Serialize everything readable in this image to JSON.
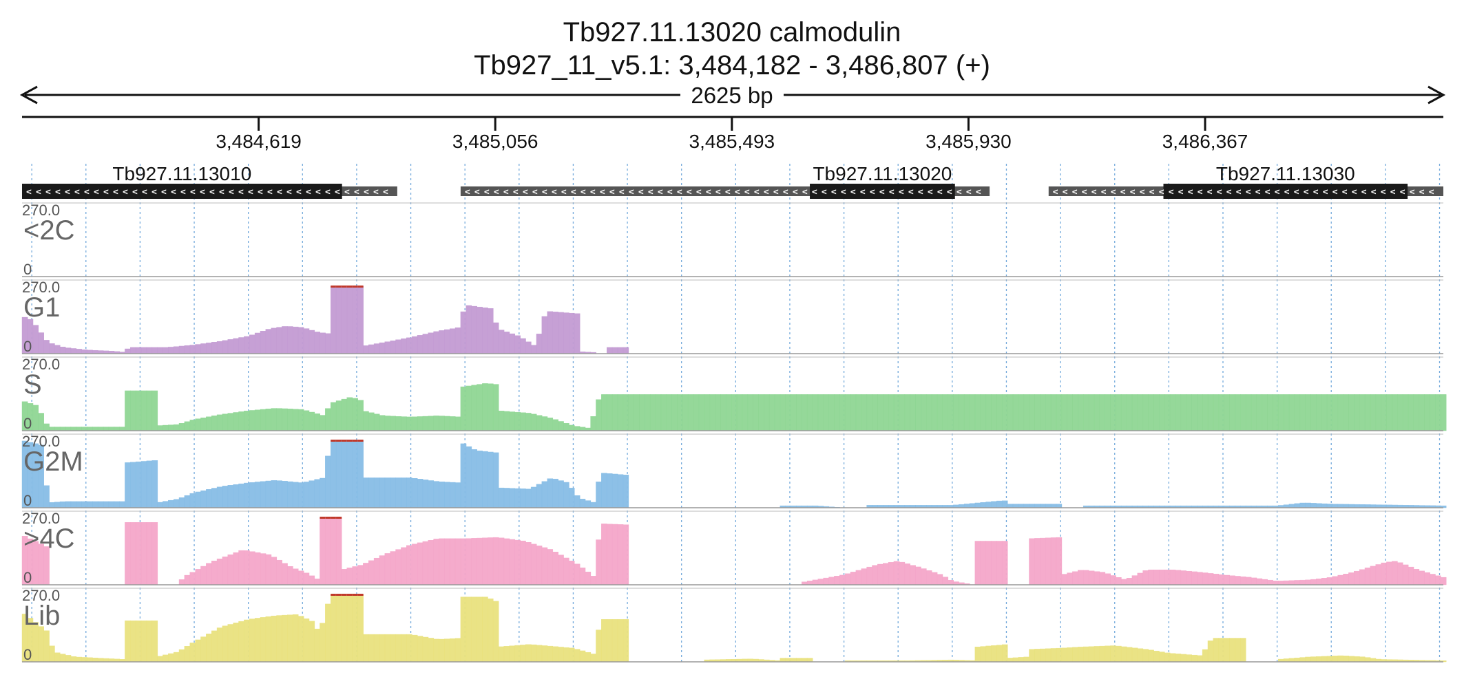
{
  "header": {
    "gene_line": "Tb927.11.13020  calmodulin",
    "locus_line": "Tb927_11_v5.1: 3,484,182 - 3,486,807 (+)",
    "span_label": "2625 bp"
  },
  "colors": {
    "grid": "#5b9bd5",
    "gene_block": "#1a1a1a",
    "gene_utr": "#555555",
    "clip": "#c0392b"
  },
  "chart_data": {
    "type": "bar",
    "region": {
      "chrom": "Tb927_11_v5.1",
      "start": 3484182,
      "end": 3486807,
      "strand": "+"
    },
    "x_ticks": [
      {
        "pos": 3484619,
        "label": "3,484,619"
      },
      {
        "pos": 3485056,
        "label": "3,485,056"
      },
      {
        "pos": 3485493,
        "label": "3,485,493"
      },
      {
        "pos": 3485930,
        "label": "3,485,930"
      },
      {
        "pos": 3486367,
        "label": "3,486,367"
      }
    ],
    "genes": [
      {
        "name": "Tb927.11.13010",
        "strand": "-",
        "start": 3484182,
        "end": 3484875,
        "cds_start": 3484182,
        "cds_end": 3484773
      },
      {
        "name": "Tb927.11.13020",
        "strand": "-",
        "start": 3484992,
        "end": 3485969,
        "cds_start": 3485637,
        "cds_end": 3485905
      },
      {
        "name": "Tb927.11.13030",
        "strand": "-",
        "start": 3486078,
        "end": 3486807,
        "cds_start": 3486290,
        "cds_end": 3486741
      }
    ],
    "ylim": [
      0,
      270
    ],
    "max_label": "270.0",
    "min_label": "0",
    "bin_size_bp": 10,
    "tracks": [
      {
        "name": "<2C",
        "color": "#ffffff",
        "points": [
          [
            3484182,
            0
          ],
          [
            3486807,
            0
          ]
        ]
      },
      {
        "name": "G1",
        "color": "#c39bd3",
        "points": [
          [
            3484182,
            150
          ],
          [
            3484200,
            135
          ],
          [
            3484230,
            45
          ],
          [
            3484260,
            25
          ],
          [
            3484300,
            15
          ],
          [
            3484350,
            10
          ],
          [
            3484370,
            6
          ],
          [
            3484380,
            25
          ],
          [
            3484450,
            25
          ],
          [
            3484500,
            35
          ],
          [
            3484550,
            50
          ],
          [
            3484600,
            70
          ],
          [
            3484640,
            100
          ],
          [
            3484670,
            110
          ],
          [
            3484700,
            105
          ],
          [
            3484730,
            85
          ],
          [
            3484750,
            80
          ],
          [
            3484752,
            270
          ],
          [
            3484810,
            270
          ],
          [
            3484812,
            30
          ],
          [
            3484850,
            45
          ],
          [
            3484900,
            65
          ],
          [
            3484950,
            90
          ],
          [
            3484990,
            105
          ],
          [
            3485000,
            195
          ],
          [
            3485050,
            180
          ],
          [
            3485060,
            100
          ],
          [
            3485100,
            70
          ],
          [
            3485130,
            30
          ],
          [
            3485150,
            170
          ],
          [
            3485210,
            160
          ],
          [
            3485212,
            8
          ],
          [
            3485240,
            5
          ],
          [
            3485245,
            0
          ],
          [
            3485260,
            0
          ],
          [
            3485262,
            25
          ],
          [
            3485305,
            25
          ],
          [
            3485307,
            0
          ],
          [
            3485300,
            0
          ],
          [
            3485300,
            0
          ],
          [
            3485310,
            0
          ],
          [
            3485300,
            0
          ]
        ]
      },
      {
        "name": "S",
        "color": "#8fd694",
        "points": [
          [
            3484182,
            120
          ],
          [
            3484210,
            100
          ],
          [
            3484230,
            15
          ],
          [
            3484370,
            15
          ],
          [
            3484372,
            160
          ],
          [
            3484430,
            160
          ],
          [
            3484432,
            20
          ],
          [
            3484470,
            25
          ],
          [
            3484500,
            45
          ],
          [
            3484550,
            65
          ],
          [
            3484600,
            80
          ],
          [
            3484650,
            90
          ],
          [
            3484700,
            85
          ],
          [
            3484740,
            60
          ],
          [
            3484752,
            110
          ],
          [
            3484790,
            135
          ],
          [
            3484810,
            120
          ],
          [
            3484812,
            80
          ],
          [
            3484850,
            60
          ],
          [
            3484900,
            55
          ],
          [
            3484950,
            60
          ],
          [
            3484992,
            55
          ],
          [
            3484994,
            175
          ],
          [
            3485040,
            190
          ],
          [
            3485060,
            185
          ],
          [
            3485062,
            80
          ],
          [
            3485120,
            70
          ],
          [
            3485160,
            50
          ],
          [
            3485200,
            20
          ],
          [
            3485230,
            10
          ],
          [
            3485250,
            145
          ],
          [
            3485305,
            145
          ]
        ]
      },
      {
        "name": "G2M",
        "color": "#87bde6",
        "points": [
          [
            3484182,
            270
          ],
          [
            3484220,
            250
          ],
          [
            3484230,
            20
          ],
          [
            3484260,
            25
          ],
          [
            3484370,
            25
          ],
          [
            3484372,
            180
          ],
          [
            3484430,
            190
          ],
          [
            3484432,
            20
          ],
          [
            3484470,
            35
          ],
          [
            3484500,
            60
          ],
          [
            3484550,
            85
          ],
          [
            3484600,
            100
          ],
          [
            3484650,
            110
          ],
          [
            3484700,
            100
          ],
          [
            3484740,
            120
          ],
          [
            3484752,
            270
          ],
          [
            3484810,
            270
          ],
          [
            3484812,
            120
          ],
          [
            3484900,
            120
          ],
          [
            3484950,
            105
          ],
          [
            3484992,
            100
          ],
          [
            3484994,
            260
          ],
          [
            3485020,
            230
          ],
          [
            3485060,
            220
          ],
          [
            3485062,
            80
          ],
          [
            3485120,
            75
          ],
          [
            3485160,
            120
          ],
          [
            3485190,
            100
          ],
          [
            3485210,
            40
          ],
          [
            3485240,
            20
          ],
          [
            3485250,
            140
          ],
          [
            3485305,
            130
          ],
          [
            3485305,
            0
          ],
          [
            3485580,
            0
          ],
          [
            3485582,
            8
          ],
          [
            3485650,
            8
          ],
          [
            3485700,
            0
          ],
          [
            3485740,
            0
          ],
          [
            3485742,
            10
          ],
          [
            3485900,
            10
          ],
          [
            3485950,
            20
          ],
          [
            3485990,
            28
          ],
          [
            3486000,
            28
          ],
          [
            3486005,
            15
          ],
          [
            3486100,
            15
          ],
          [
            3486102,
            0
          ],
          [
            3486140,
            0
          ],
          [
            3486142,
            8
          ],
          [
            3486400,
            8
          ],
          [
            3486500,
            8
          ],
          [
            3486550,
            20
          ],
          [
            3486600,
            15
          ],
          [
            3486807,
            8
          ]
        ]
      },
      {
        "name": ">4C",
        "color": "#f4a6c9",
        "points": [
          [
            3484182,
            200
          ],
          [
            3484230,
            150
          ],
          [
            3484235,
            0
          ],
          [
            3484370,
            0
          ],
          [
            3484372,
            250
          ],
          [
            3484430,
            250
          ],
          [
            3484432,
            0
          ],
          [
            3484470,
            0
          ],
          [
            3484480,
            30
          ],
          [
            3484530,
            90
          ],
          [
            3484590,
            140
          ],
          [
            3484640,
            120
          ],
          [
            3484680,
            70
          ],
          [
            3484710,
            45
          ],
          [
            3484730,
            20
          ],
          [
            3484732,
            270
          ],
          [
            3484770,
            270
          ],
          [
            3484772,
            60
          ],
          [
            3484810,
            80
          ],
          [
            3484850,
            120
          ],
          [
            3484900,
            160
          ],
          [
            3484950,
            185
          ],
          [
            3485000,
            185
          ],
          [
            3485060,
            190
          ],
          [
            3485110,
            175
          ],
          [
            3485160,
            140
          ],
          [
            3485210,
            80
          ],
          [
            3485240,
            30
          ],
          [
            3485250,
            245
          ],
          [
            3485305,
            240
          ],
          [
            3485305,
            0
          ],
          [
            3485620,
            0
          ],
          [
            3485622,
            10
          ],
          [
            3485700,
            40
          ],
          [
            3485760,
            80
          ],
          [
            3485800,
            95
          ],
          [
            3485840,
            70
          ],
          [
            3485880,
            40
          ],
          [
            3485900,
            15
          ],
          [
            3485940,
            0
          ],
          [
            3485945,
            175
          ],
          [
            3486002,
            175
          ],
          [
            3486004,
            0
          ],
          [
            3486040,
            0
          ],
          [
            3486042,
            185
          ],
          [
            3486100,
            190
          ],
          [
            3486102,
            40
          ],
          [
            3486140,
            60
          ],
          [
            3486180,
            50
          ],
          [
            3486220,
            20
          ],
          [
            3486260,
            60
          ],
          [
            3486310,
            60
          ],
          [
            3486360,
            50
          ],
          [
            3486400,
            40
          ],
          [
            3486450,
            30
          ],
          [
            3486500,
            15
          ],
          [
            3486560,
            20
          ],
          [
            3486600,
            30
          ],
          [
            3486640,
            50
          ],
          [
            3486700,
            90
          ],
          [
            3486720,
            95
          ],
          [
            3486760,
            60
          ],
          [
            3486807,
            30
          ]
        ]
      },
      {
        "name": "Lib",
        "color": "#e9e17e",
        "points": [
          [
            3484182,
            200
          ],
          [
            3484230,
            120
          ],
          [
            3484240,
            40
          ],
          [
            3484280,
            20
          ],
          [
            3484370,
            10
          ],
          [
            3484372,
            165
          ],
          [
            3484430,
            165
          ],
          [
            3484432,
            20
          ],
          [
            3484470,
            40
          ],
          [
            3484500,
            80
          ],
          [
            3484550,
            140
          ],
          [
            3484600,
            170
          ],
          [
            3484650,
            185
          ],
          [
            3484690,
            190
          ],
          [
            3484720,
            160
          ],
          [
            3484730,
            120
          ],
          [
            3484735,
            140
          ],
          [
            3484752,
            270
          ],
          [
            3484810,
            270
          ],
          [
            3484812,
            110
          ],
          [
            3484900,
            110
          ],
          [
            3484950,
            90
          ],
          [
            3484992,
            95
          ],
          [
            3484994,
            260
          ],
          [
            3485040,
            260
          ],
          [
            3485060,
            240
          ],
          [
            3485062,
            60
          ],
          [
            3485120,
            70
          ],
          [
            3485200,
            55
          ],
          [
            3485240,
            30
          ],
          [
            3485250,
            170
          ],
          [
            3485305,
            170
          ],
          [
            3485305,
            0
          ],
          [
            3485440,
            0
          ],
          [
            3485442,
            8
          ],
          [
            3485530,
            12
          ],
          [
            3485580,
            5
          ],
          [
            3485582,
            15
          ],
          [
            3485640,
            15
          ],
          [
            3485642,
            0
          ],
          [
            3485700,
            0
          ],
          [
            3485702,
            5
          ],
          [
            3485820,
            5
          ],
          [
            3485900,
            8
          ],
          [
            3485945,
            5
          ],
          [
            3485947,
            60
          ],
          [
            3486002,
            70
          ],
          [
            3486004,
            15
          ],
          [
            3486040,
            20
          ],
          [
            3486042,
            50
          ],
          [
            3486100,
            55
          ],
          [
            3486140,
            60
          ],
          [
            3486200,
            65
          ],
          [
            3486260,
            50
          ],
          [
            3486300,
            35
          ],
          [
            3486360,
            25
          ],
          [
            3486380,
            95
          ],
          [
            3486440,
            95
          ],
          [
            3486442,
            0
          ],
          [
            3486500,
            0
          ],
          [
            3486502,
            10
          ],
          [
            3486560,
            20
          ],
          [
            3486620,
            25
          ],
          [
            3486660,
            20
          ],
          [
            3486690,
            10
          ],
          [
            3486807,
            5
          ]
        ]
      }
    ]
  }
}
